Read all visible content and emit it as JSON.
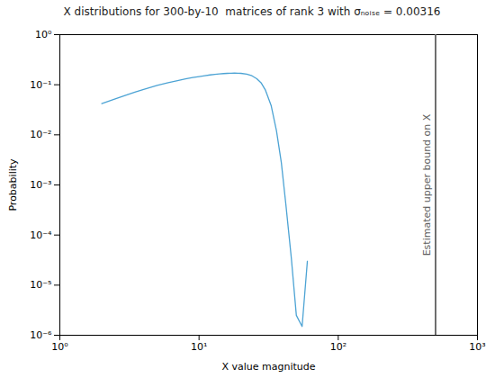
{
  "chart_data": {
    "type": "line",
    "title": "X distributions for 300-by-10  matrices of rank 3 with σₙₒᵢₛₑ = 0.00316",
    "xlabel": "X value magnitude",
    "ylabel": "Probability",
    "log": true,
    "grid": false,
    "x": [
      2.0,
      2.5,
      3.0,
      3.5,
      4.0,
      5.0,
      6.0,
      7.0,
      8.0,
      9.0,
      10.0,
      11.0,
      12.0,
      13.0,
      14.0,
      15.0,
      16.0,
      17.0,
      18.0,
      19.0,
      20.0,
      22.0,
      24.0,
      26.0,
      28.0,
      30.0,
      33.0,
      36.0,
      39.0,
      42.0,
      46.0,
      50.0,
      55.0,
      60.0
    ],
    "values": [
      0.042,
      0.052,
      0.062,
      0.072,
      0.081,
      0.097,
      0.11,
      0.121,
      0.131,
      0.139,
      0.146,
      0.152,
      0.157,
      0.161,
      0.164,
      0.167,
      0.169,
      0.17,
      0.171,
      0.17,
      0.169,
      0.163,
      0.151,
      0.132,
      0.108,
      0.078,
      0.038,
      0.012,
      0.0028,
      0.00042,
      3.5e-05,
      2.5e-06,
      1.5e-06,
      3e-05
    ],
    "color": "#4CA3D4",
    "xlim": [
      1,
      1000
    ],
    "ylim": [
      1e-06,
      1
    ],
    "xticks": [
      {
        "value": 1,
        "label": "10⁰"
      },
      {
        "value": 10,
        "label": "10¹"
      },
      {
        "value": 100,
        "label": "10²"
      },
      {
        "value": 1000,
        "label": "10³"
      }
    ],
    "yticks": [
      {
        "value": 1e-06,
        "label": "10⁻⁶"
      },
      {
        "value": 1e-05,
        "label": "10⁻⁵"
      },
      {
        "value": 0.0001,
        "label": "10⁻⁴"
      },
      {
        "value": 0.001,
        "label": "10⁻³"
      },
      {
        "value": 0.01,
        "label": "10⁻²"
      },
      {
        "value": 0.1,
        "label": "10⁻¹"
      },
      {
        "value": 1,
        "label": "10⁰"
      }
    ],
    "annotations": [
      {
        "type": "vline",
        "x": 500,
        "label": "Estimated upper bound on X",
        "color": "#606060"
      }
    ]
  }
}
